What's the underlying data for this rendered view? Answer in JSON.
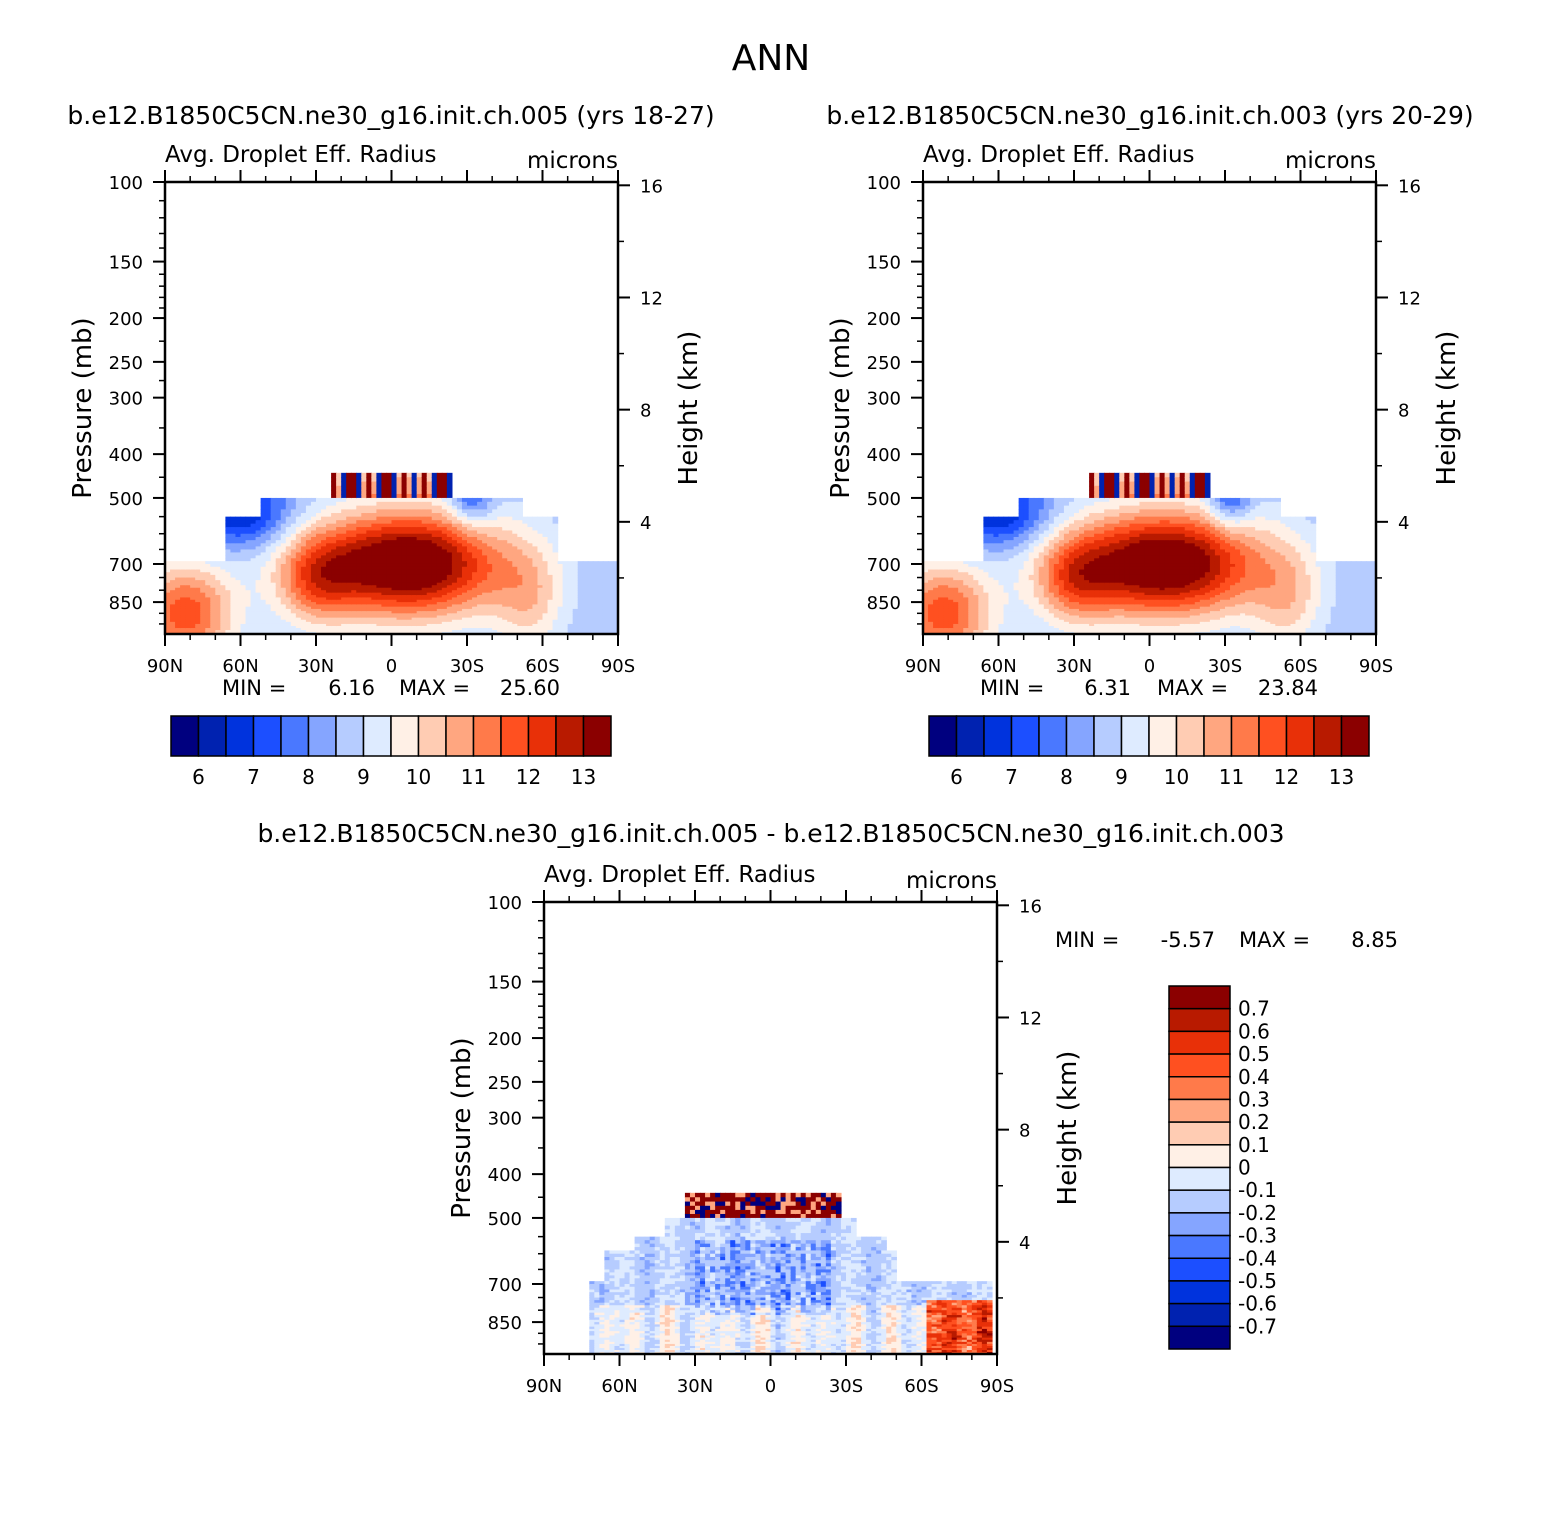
{
  "figure": {
    "title": "ANN"
  },
  "palettes": {
    "field": [
      "#00007f",
      "#0022b0",
      "#0033dd",
      "#1c4fff",
      "#4a78ff",
      "#85a5ff",
      "#b6ccff",
      "#deebff",
      "#fff0e6",
      "#ffccb3",
      "#ffa680",
      "#ff7a4a",
      "#ff5020",
      "#e83008",
      "#b81a00",
      "#8b0000"
    ],
    "diff": [
      "#8b0000",
      "#b81a00",
      "#e83008",
      "#ff5020",
      "#ff7a4a",
      "#ffa680",
      "#ffccb3",
      "#fff0e6",
      "#deebff",
      "#b6ccff",
      "#85a5ff",
      "#4a78ff",
      "#1c4fff",
      "#0033dd",
      "#0022b0",
      "#00007f"
    ]
  },
  "chart_data": [
    {
      "type": "heatmap",
      "id": "panel-a",
      "case_title": "b.e12.B1850C5CN.ne30_g16.init.ch.005 (yrs 18-27)",
      "title": "Avg. Droplet Eff. Radius",
      "units": "microns",
      "xlabel": "",
      "ylabel": "Pressure (mb)",
      "ylabel_right": "Height (km)",
      "x_ticks": [
        "90N",
        "60N",
        "30N",
        "0",
        "30S",
        "60S",
        "90S"
      ],
      "y_ticks": [
        "100",
        "150",
        "200",
        "250",
        "300",
        "400",
        "500",
        "700",
        "850"
      ],
      "right_ticks": [
        "16",
        "12",
        "8",
        "4"
      ],
      "y_scale": "log",
      "ylim": [
        1000,
        100
      ],
      "xlim": [
        90,
        -90
      ],
      "grid": false,
      "min_label": "MIN =",
      "min_value": "6.16",
      "max_label": "MAX =",
      "max_value": "25.60",
      "min": 6.16,
      "max": 25.6,
      "peak": 14.2,
      "colorbar_labels": [
        "6",
        "7",
        "8",
        "9",
        "10",
        "11",
        "12",
        "13"
      ],
      "colorbar_orientation": "horizontal",
      "contour_levels": [
        5.5,
        6,
        6.5,
        7,
        7.5,
        8,
        8.5,
        9,
        9.5,
        10,
        10.5,
        11,
        11.5,
        12,
        12.5,
        13,
        13.5
      ]
    },
    {
      "type": "heatmap",
      "id": "panel-b",
      "case_title": "b.e12.B1850C5CN.ne30_g16.init.ch.003 (yrs 20-29)",
      "title": "Avg. Droplet Eff. Radius",
      "units": "microns",
      "xlabel": "",
      "ylabel": "Pressure (mb)",
      "ylabel_right": "Height (km)",
      "x_ticks": [
        "90N",
        "60N",
        "30N",
        "0",
        "30S",
        "60S",
        "90S"
      ],
      "y_ticks": [
        "100",
        "150",
        "200",
        "250",
        "300",
        "400",
        "500",
        "700",
        "850"
      ],
      "right_ticks": [
        "16",
        "12",
        "8",
        "4"
      ],
      "y_scale": "log",
      "ylim": [
        1000,
        100
      ],
      "xlim": [
        90,
        -90
      ],
      "grid": false,
      "min_label": "MIN =",
      "min_value": "6.31",
      "max_label": "MAX =",
      "max_value": "23.84",
      "min": 6.31,
      "max": 23.84,
      "peak": 14.1,
      "colorbar_labels": [
        "6",
        "7",
        "8",
        "9",
        "10",
        "11",
        "12",
        "13"
      ],
      "colorbar_orientation": "horizontal",
      "contour_levels": [
        5.5,
        6,
        6.5,
        7,
        7.5,
        8,
        8.5,
        9,
        9.5,
        10,
        10.5,
        11,
        11.5,
        12,
        12.5,
        13,
        13.5
      ]
    },
    {
      "type": "heatmap",
      "id": "panel-diff",
      "case_title": "b.e12.B1850C5CN.ne30_g16.init.ch.005 - b.e12.B1850C5CN.ne30_g16.init.ch.003",
      "title": "Avg. Droplet Eff. Radius",
      "units": "microns",
      "xlabel": "",
      "ylabel": "Pressure (mb)",
      "ylabel_right": "Height (km)",
      "x_ticks": [
        "90N",
        "60N",
        "30N",
        "0",
        "30S",
        "60S",
        "90S"
      ],
      "y_ticks": [
        "100",
        "150",
        "200",
        "250",
        "300",
        "400",
        "500",
        "700",
        "850"
      ],
      "right_ticks": [
        "16",
        "12",
        "8",
        "4"
      ],
      "y_scale": "log",
      "ylim": [
        1000,
        100
      ],
      "xlim": [
        90,
        -90
      ],
      "grid": false,
      "min_label": "MIN =",
      "min_value": "-5.57",
      "max_label": "MAX =",
      "max_value": "8.85",
      "min": -5.57,
      "max": 8.85,
      "colorbar_labels": [
        "0.7",
        "0.6",
        "0.5",
        "0.4",
        "0.3",
        "0.2",
        "0.1",
        "0",
        "-0.1",
        "-0.2",
        "-0.3",
        "-0.4",
        "-0.5",
        "-0.6",
        "-0.7"
      ],
      "colorbar_orientation": "vertical",
      "contour_levels": [
        0.7,
        0.6,
        0.5,
        0.4,
        0.3,
        0.2,
        0.1,
        0,
        -0.1,
        -0.2,
        -0.3,
        -0.4,
        -0.5,
        -0.6,
        -0.7
      ]
    }
  ]
}
